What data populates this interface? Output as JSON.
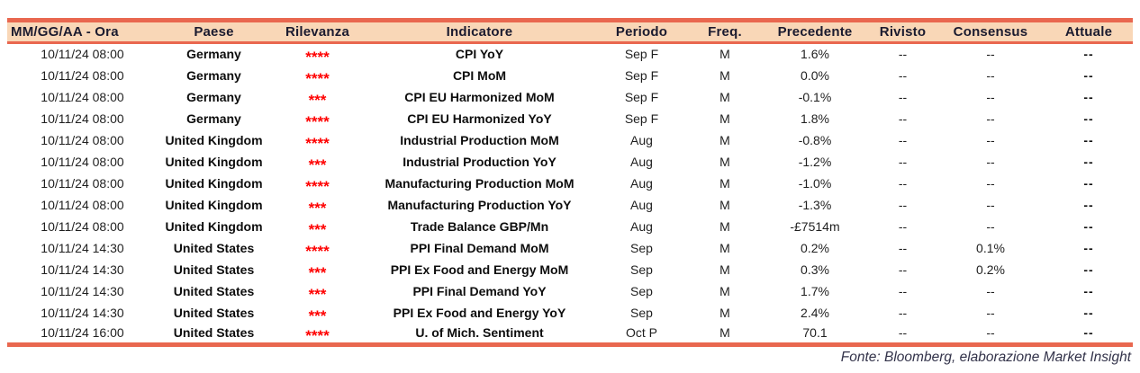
{
  "colors": {
    "accent_line": "#E9674F",
    "header_background": "#F9D7B7",
    "header_text": "#1B1B2F",
    "relevance_star": "#FF0000",
    "body_text": "#141414",
    "footer_text": "#33334A"
  },
  "table": {
    "columns": {
      "datetime": {
        "label": "MM/GG/AA - Ora"
      },
      "country": {
        "label": "Paese"
      },
      "relevance": {
        "label": "Rilevanza"
      },
      "indicator": {
        "label": "Indicatore"
      },
      "period": {
        "label": "Periodo"
      },
      "freq": {
        "label": "Freq."
      },
      "previous": {
        "label": "Precedente"
      },
      "revised": {
        "label": "Rivisto"
      },
      "consensus": {
        "label": "Consensus"
      },
      "actual": {
        "label": "Attuale"
      }
    },
    "rows": [
      {
        "datetime": "10/11/24 08:00",
        "country": "Germany",
        "relevance": "****",
        "indicator": "CPI YoY",
        "period": "Sep F",
        "freq": "M",
        "previous": "1.6%",
        "revised": "--",
        "consensus": "--",
        "actual": "--"
      },
      {
        "datetime": "10/11/24 08:00",
        "country": "Germany",
        "relevance": "****",
        "indicator": "CPI MoM",
        "period": "Sep F",
        "freq": "M",
        "previous": "0.0%",
        "revised": "--",
        "consensus": "--",
        "actual": "--"
      },
      {
        "datetime": "10/11/24 08:00",
        "country": "Germany",
        "relevance": "***",
        "indicator": "CPI EU Harmonized MoM",
        "period": "Sep F",
        "freq": "M",
        "previous": "-0.1%",
        "revised": "--",
        "consensus": "--",
        "actual": "--"
      },
      {
        "datetime": "10/11/24 08:00",
        "country": "Germany",
        "relevance": "****",
        "indicator": "CPI EU Harmonized YoY",
        "period": "Sep F",
        "freq": "M",
        "previous": "1.8%",
        "revised": "--",
        "consensus": "--",
        "actual": "--"
      },
      {
        "datetime": "10/11/24 08:00",
        "country": "United Kingdom",
        "relevance": "****",
        "indicator": "Industrial Production MoM",
        "period": "Aug",
        "freq": "M",
        "previous": "-0.8%",
        "revised": "--",
        "consensus": "--",
        "actual": "--"
      },
      {
        "datetime": "10/11/24 08:00",
        "country": "United Kingdom",
        "relevance": "***",
        "indicator": "Industrial Production YoY",
        "period": "Aug",
        "freq": "M",
        "previous": "-1.2%",
        "revised": "--",
        "consensus": "--",
        "actual": "--"
      },
      {
        "datetime": "10/11/24 08:00",
        "country": "United Kingdom",
        "relevance": "****",
        "indicator": "Manufacturing Production MoM",
        "period": "Aug",
        "freq": "M",
        "previous": "-1.0%",
        "revised": "--",
        "consensus": "--",
        "actual": "--"
      },
      {
        "datetime": "10/11/24 08:00",
        "country": "United Kingdom",
        "relevance": "***",
        "indicator": "Manufacturing Production YoY",
        "period": "Aug",
        "freq": "M",
        "previous": "-1.3%",
        "revised": "--",
        "consensus": "--",
        "actual": "--"
      },
      {
        "datetime": "10/11/24 08:00",
        "country": "United Kingdom",
        "relevance": "***",
        "indicator": "Trade Balance GBP/Mn",
        "period": "Aug",
        "freq": "M",
        "previous": "-£7514m",
        "revised": "--",
        "consensus": "--",
        "actual": "--"
      },
      {
        "datetime": "10/11/24 14:30",
        "country": "United States",
        "relevance": "****",
        "indicator": "PPI Final Demand MoM",
        "period": "Sep",
        "freq": "M",
        "previous": "0.2%",
        "revised": "--",
        "consensus": "0.1%",
        "actual": "--"
      },
      {
        "datetime": "10/11/24 14:30",
        "country": "United States",
        "relevance": "***",
        "indicator": "PPI Ex Food and Energy MoM",
        "period": "Sep",
        "freq": "M",
        "previous": "0.3%",
        "revised": "--",
        "consensus": "0.2%",
        "actual": "--"
      },
      {
        "datetime": "10/11/24 14:30",
        "country": "United States",
        "relevance": "***",
        "indicator": "PPI Final Demand YoY",
        "period": "Sep",
        "freq": "M",
        "previous": "1.7%",
        "revised": "--",
        "consensus": "--",
        "actual": "--"
      },
      {
        "datetime": "10/11/24 14:30",
        "country": "United States",
        "relevance": "***",
        "indicator": "PPI Ex Food and Energy YoY",
        "period": "Sep",
        "freq": "M",
        "previous": "2.4%",
        "revised": "--",
        "consensus": "--",
        "actual": "--"
      },
      {
        "datetime": "10/11/24 16:00",
        "country": "United States",
        "relevance": "****",
        "indicator": "U. of Mich. Sentiment",
        "period": "Oct P",
        "freq": "M",
        "previous": "70.1",
        "revised": "--",
        "consensus": "--",
        "actual": "--"
      }
    ]
  },
  "footer": {
    "source": "Fonte: Bloomberg, elaborazione Market Insight"
  }
}
